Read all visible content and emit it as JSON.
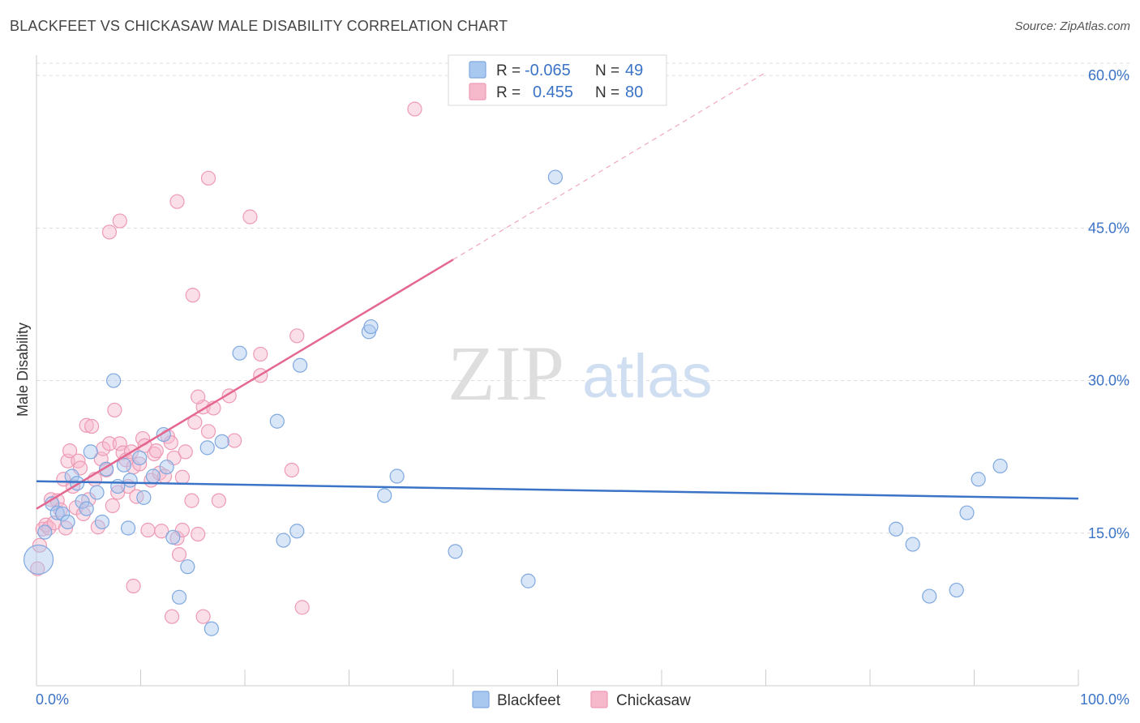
{
  "header": {
    "title": "BLACKFEET VS CHICKASAW MALE DISABILITY CORRELATION CHART",
    "source": "Source: ZipAtlas.com"
  },
  "watermark": {
    "zip": "ZIP",
    "atlas": "atlas"
  },
  "legend": {
    "rows": [
      {
        "r_label": "R =",
        "r_value": "-0.065",
        "n_label": "N =",
        "n_value": "49",
        "color": "#a9c8ef"
      },
      {
        "r_label": "R =",
        "r_value": "0.455",
        "n_label": "N =",
        "n_value": "80",
        "color": "#f6b9cc"
      }
    ]
  },
  "bottom_legend": {
    "items": [
      {
        "label": "Blackfeet",
        "color": "#a9c8ef"
      },
      {
        "label": "Chickasaw",
        "color": "#f6b9cc"
      }
    ]
  },
  "chart_data": {
    "type": "scatter",
    "title": "BLACKFEET VS CHICKASAW MALE DISABILITY CORRELATION CHART",
    "xlabel": "",
    "ylabel": "Male Disability",
    "xlim": [
      0,
      100
    ],
    "ylim": [
      0,
      62
    ],
    "x_tick_labels": [
      "0.0%",
      "100.0%"
    ],
    "y_ticks": [
      15,
      30,
      45,
      60
    ],
    "y_tick_labels": [
      "15.0%",
      "30.0%",
      "45.0%",
      "60.0%"
    ],
    "grid": true,
    "colors": {
      "blackfeet": "#3b73c6",
      "chickasaw": "#e4678f",
      "blackfeet_fill": "#a9c8ef",
      "chickasaw_fill": "#f6b9cc"
    },
    "series": [
      {
        "name": "Blackfeet",
        "r": -0.065,
        "n": 49,
        "trend": {
          "x": [
            0,
            100
          ],
          "y": [
            20.1,
            18.4
          ]
        },
        "points": [
          [
            0.2,
            12.4
          ],
          [
            0.8,
            15.1
          ],
          [
            1.5,
            17.9
          ],
          [
            2.0,
            17.0
          ],
          [
            2.5,
            16.9
          ],
          [
            3.0,
            16.1
          ],
          [
            3.4,
            20.6
          ],
          [
            3.9,
            19.9
          ],
          [
            4.4,
            18.1
          ],
          [
            4.8,
            17.4
          ],
          [
            5.2,
            23.0
          ],
          [
            5.8,
            19.0
          ],
          [
            6.3,
            16.1
          ],
          [
            6.7,
            21.3
          ],
          [
            7.4,
            30.0
          ],
          [
            7.8,
            19.6
          ],
          [
            8.4,
            21.7
          ],
          [
            8.8,
            15.5
          ],
          [
            9.0,
            20.2
          ],
          [
            9.9,
            22.4
          ],
          [
            10.3,
            18.5
          ],
          [
            11.2,
            20.6
          ],
          [
            12.2,
            24.7
          ],
          [
            12.5,
            21.5
          ],
          [
            13.1,
            14.6
          ],
          [
            13.7,
            8.7
          ],
          [
            14.5,
            11.7
          ],
          [
            16.4,
            23.4
          ],
          [
            16.8,
            5.6
          ],
          [
            17.8,
            24.0
          ],
          [
            19.5,
            32.7
          ],
          [
            23.1,
            26.0
          ],
          [
            23.7,
            14.3
          ],
          [
            25.0,
            15.2
          ],
          [
            25.3,
            31.5
          ],
          [
            31.9,
            34.8
          ],
          [
            32.1,
            35.3
          ],
          [
            33.4,
            18.7
          ],
          [
            34.6,
            20.6
          ],
          [
            40.2,
            13.2
          ],
          [
            47.2,
            10.3
          ],
          [
            49.8,
            50.0
          ],
          [
            82.5,
            15.4
          ],
          [
            84.1,
            13.9
          ],
          [
            85.7,
            8.8
          ],
          [
            88.3,
            9.4
          ],
          [
            89.3,
            17.0
          ],
          [
            90.4,
            20.3
          ],
          [
            92.5,
            21.6
          ]
        ]
      },
      {
        "name": "Chickasaw",
        "r": 0.455,
        "n": 80,
        "trend": {
          "x": [
            0,
            40.0
          ],
          "y": [
            17.4,
            41.9
          ]
        },
        "trend_ext": {
          "x": [
            40.0,
            70.0
          ],
          "y": [
            41.9,
            60.3
          ]
        },
        "points": [
          [
            0.1,
            11.5
          ],
          [
            0.3,
            13.8
          ],
          [
            0.6,
            15.4
          ],
          [
            0.9,
            15.8
          ],
          [
            1.2,
            15.5
          ],
          [
            1.4,
            18.3
          ],
          [
            1.7,
            16.0
          ],
          [
            2.0,
            18.2
          ],
          [
            2.3,
            17.3
          ],
          [
            2.6,
            20.3
          ],
          [
            2.8,
            15.5
          ],
          [
            3.0,
            22.1
          ],
          [
            3.2,
            23.1
          ],
          [
            3.5,
            19.6
          ],
          [
            3.8,
            17.5
          ],
          [
            4.0,
            22.1
          ],
          [
            4.2,
            21.4
          ],
          [
            4.5,
            16.9
          ],
          [
            4.8,
            25.6
          ],
          [
            5.0,
            18.3
          ],
          [
            5.3,
            25.5
          ],
          [
            5.6,
            20.3
          ],
          [
            5.9,
            15.6
          ],
          [
            6.2,
            22.3
          ],
          [
            6.4,
            23.3
          ],
          [
            6.7,
            21.2
          ],
          [
            7.0,
            23.8
          ],
          [
            7.3,
            17.7
          ],
          [
            7.5,
            27.1
          ],
          [
            7.8,
            19.0
          ],
          [
            8.0,
            23.8
          ],
          [
            8.3,
            22.9
          ],
          [
            8.6,
            22.2
          ],
          [
            8.8,
            19.6
          ],
          [
            9.1,
            23.0
          ],
          [
            9.3,
            21.5
          ],
          [
            9.6,
            18.6
          ],
          [
            9.9,
            21.8
          ],
          [
            10.2,
            24.3
          ],
          [
            10.4,
            23.6
          ],
          [
            10.7,
            15.3
          ],
          [
            11.0,
            20.2
          ],
          [
            11.3,
            22.8
          ],
          [
            11.5,
            23.1
          ],
          [
            11.8,
            20.9
          ],
          [
            12.0,
            15.2
          ],
          [
            12.3,
            20.6
          ],
          [
            12.6,
            24.5
          ],
          [
            12.9,
            23.9
          ],
          [
            13.2,
            22.4
          ],
          [
            13.5,
            14.5
          ],
          [
            13.7,
            12.9
          ],
          [
            14.0,
            15.3
          ],
          [
            14.3,
            23.0
          ],
          [
            8.0,
            45.7
          ],
          [
            7.0,
            44.6
          ],
          [
            9.3,
            9.8
          ],
          [
            13.5,
            47.6
          ],
          [
            16.5,
            49.9
          ],
          [
            20.5,
            46.1
          ],
          [
            15.0,
            38.4
          ],
          [
            25.0,
            34.4
          ],
          [
            21.5,
            32.6
          ],
          [
            21.5,
            30.5
          ],
          [
            24.5,
            21.2
          ],
          [
            18.5,
            28.5
          ],
          [
            16.0,
            27.4
          ],
          [
            15.5,
            28.4
          ],
          [
            17.0,
            27.3
          ],
          [
            16.5,
            25.0
          ],
          [
            19.0,
            24.1
          ],
          [
            17.5,
            18.2
          ],
          [
            16.0,
            6.8
          ],
          [
            25.5,
            7.7
          ],
          [
            36.3,
            56.7
          ],
          [
            15.2,
            25.9
          ],
          [
            14.0,
            20.5
          ],
          [
            15.5,
            14.9
          ],
          [
            13.0,
            6.8
          ],
          [
            14.9,
            18.2
          ]
        ]
      }
    ]
  }
}
